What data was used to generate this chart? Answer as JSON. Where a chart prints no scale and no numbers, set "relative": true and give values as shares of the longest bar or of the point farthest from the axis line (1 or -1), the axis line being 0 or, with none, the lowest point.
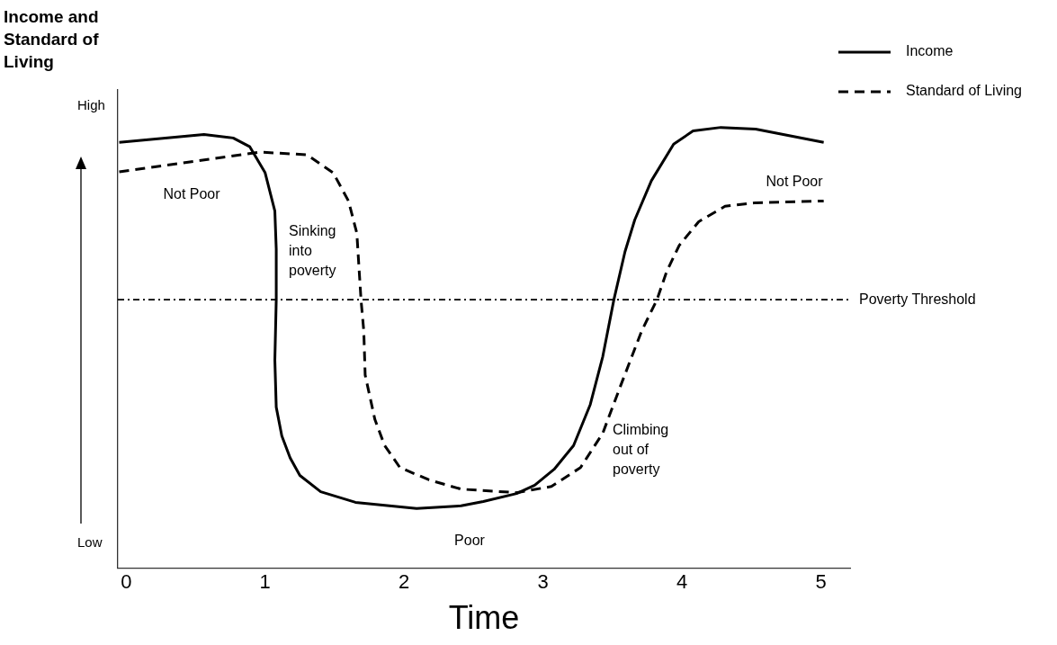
{
  "chart_data": {
    "type": "line",
    "title": "Income and Standard of Living",
    "xlabel": "Time",
    "relative": true,
    "xlim": [
      -0.06,
      5.21
    ],
    "xticks": [
      0,
      1,
      2,
      3,
      4,
      5
    ],
    "grid": false,
    "legend": "top right",
    "marker": "none",
    "series": [
      {
        "name": "Income",
        "color": "#000000",
        "line_style": "solid",
        "x": [
          -0.05,
          0.56,
          0.77,
          0.89,
          1.0,
          1.07,
          1.08,
          1.08,
          1.07,
          1.08,
          1.12,
          1.18,
          1.25,
          1.4,
          1.65,
          2.09,
          2.41,
          2.57,
          2.81,
          2.94,
          3.08,
          3.22,
          3.34,
          3.43,
          3.51,
          3.59,
          3.66,
          3.78,
          3.94,
          4.08,
          4.28,
          4.53,
          5.02
        ],
        "values": [
          0.966,
          0.984,
          0.976,
          0.956,
          0.897,
          0.81,
          0.724,
          0.609,
          0.472,
          0.365,
          0.3,
          0.25,
          0.21,
          0.173,
          0.149,
          0.135,
          0.141,
          0.151,
          0.169,
          0.188,
          0.224,
          0.278,
          0.371,
          0.48,
          0.609,
          0.718,
          0.79,
          0.879,
          0.962,
          0.992,
          1.0,
          0.996,
          0.966
        ]
      },
      {
        "name": "Standard of Living",
        "color": "#000000",
        "line_style": "dashed",
        "x": [
          -0.05,
          0.96,
          1.3,
          1.49,
          1.6,
          1.66,
          1.69,
          1.71,
          1.72,
          1.79,
          1.86,
          1.97,
          2.18,
          2.41,
          2.81,
          3.06,
          3.27,
          3.43,
          3.56,
          3.71,
          3.82,
          3.89,
          3.98,
          4.12,
          4.31,
          4.53,
          5.02
        ],
        "values": [
          0.899,
          0.944,
          0.938,
          0.897,
          0.833,
          0.76,
          0.609,
          0.538,
          0.438,
          0.337,
          0.278,
          0.228,
          0.2,
          0.179,
          0.171,
          0.185,
          0.228,
          0.306,
          0.415,
          0.538,
          0.609,
          0.673,
          0.732,
          0.786,
          0.821,
          0.829,
          0.833
        ]
      }
    ],
    "ref_lines": [
      {
        "axis": "y",
        "value": 0.609,
        "label": "Poverty Threshold",
        "color": "#000000",
        "line_style": "dotted"
      }
    ],
    "annotations": [
      "High",
      "Low",
      "Not Poor",
      "Sinking\ninto\npoverty",
      "Poor",
      "Climbing\nout of\npoverty",
      "Not Poor"
    ]
  }
}
